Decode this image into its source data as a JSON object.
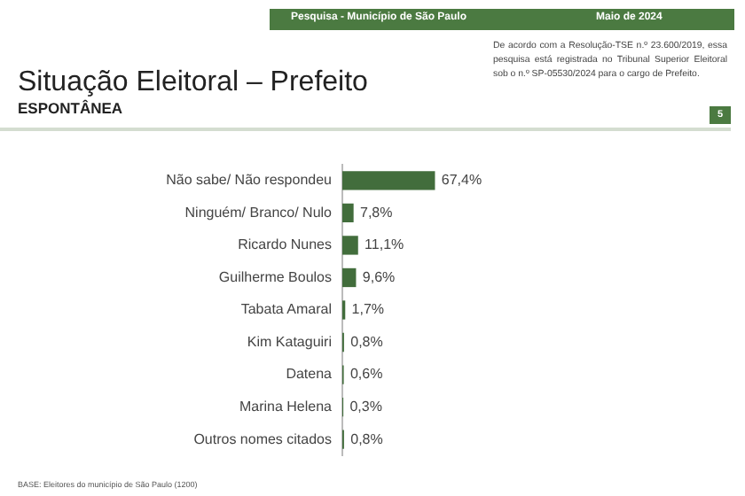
{
  "chart_data": {
    "type": "bar",
    "orientation": "horizontal",
    "title": "Situação Eleitoral – Prefeito",
    "subtitle": "ESPONTÂNEA",
    "categories": [
      "Não sabe/ Não respondeu",
      "Ninguém/ Branco/ Nulo",
      "Ricardo Nunes",
      "Guilherme Boulos",
      "Tabata Amaral",
      "Kim Kataguiri",
      "Datena",
      "Marina Helena",
      "Outros nomes citados"
    ],
    "values": [
      67.4,
      7.8,
      11.1,
      9.6,
      1.7,
      0.8,
      0.6,
      0.3,
      0.8
    ],
    "value_labels": [
      "67,4%",
      "7,8%",
      "11,1%",
      "9,6%",
      "1,7%",
      "0,8%",
      "0,6%",
      "0,3%",
      "0,8%"
    ],
    "color": "#426d3c",
    "tick_labels": "y",
    "legend": false,
    "annotations": [
      "Pesquisa - Município de São Paulo",
      "Maio de 2024",
      "De acordo com a Resolução-TSE n.º 23.600/2019, essa pesquisa está registrada no Tribunal Superior Eleitoral sob o n.º SP-05530/2024 para o cargo de Prefeito.",
      "5",
      "BASE: Eleitores do município de São Paulo (1200)"
    ]
  }
}
